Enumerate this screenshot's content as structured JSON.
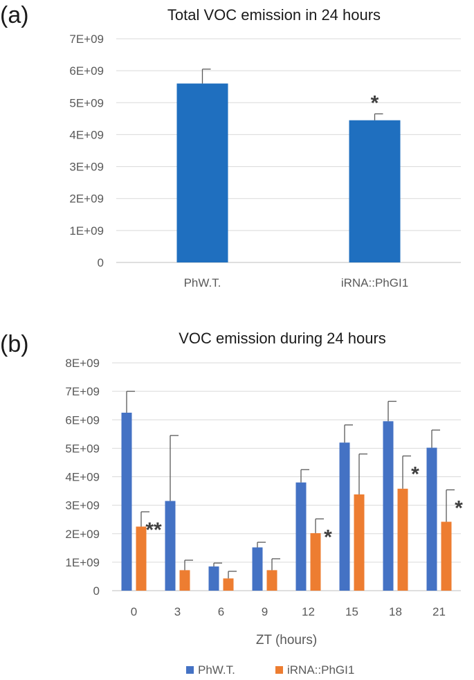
{
  "panel_a": {
    "label": "(a)"
  },
  "panel_b": {
    "label": "(b)"
  },
  "legend": {
    "items": [
      {
        "label": "PhW.T.",
        "color": "#4472C4"
      },
      {
        "label": "iRNA::PhGI1",
        "color": "#ED7D31"
      }
    ]
  },
  "chart_data": [
    {
      "type": "bar",
      "title": "Total VOC emission in 24 hours",
      "categories": [
        "PhW.T.",
        "iRNA::PhGI1"
      ],
      "values": [
        5600000000.0,
        4450000000.0
      ],
      "errors": [
        450000000.0,
        200000000.0
      ],
      "significance": [
        "",
        "*"
      ],
      "ylim": [
        0,
        7000000000.0
      ],
      "yticks": [
        0,
        1000000000.0,
        2000000000.0,
        3000000000.0,
        4000000000.0,
        5000000000.0,
        6000000000.0,
        7000000000.0
      ],
      "ytick_labels": [
        "0",
        "1E+09",
        "2E+09",
        "3E+09",
        "4E+09",
        "5E+09",
        "6E+09",
        "7E+09"
      ],
      "xlabel": "",
      "ylabel": "",
      "color": "#1F6FBF",
      "grid": true
    },
    {
      "type": "bar",
      "title": "VOC emission during 24 hours",
      "categories": [
        "0",
        "3",
        "6",
        "9",
        "12",
        "15",
        "18",
        "21"
      ],
      "series": [
        {
          "name": "PhW.T.",
          "values": [
            6250000000.0,
            3150000000.0,
            850000000.0,
            1520000000.0,
            3800000000.0,
            5200000000.0,
            5950000000.0,
            5020000000.0
          ],
          "errors": [
            750000000.0,
            2300000000.0,
            120000000.0,
            180000000.0,
            450000000.0,
            620000000.0,
            700000000.0,
            620000000.0
          ]
        },
        {
          "name": "iRNA::PhGI1",
          "values": [
            2250000000.0,
            720000000.0,
            430000000.0,
            720000000.0,
            2020000000.0,
            3380000000.0,
            3580000000.0,
            2420000000.0
          ],
          "errors": [
            520000000.0,
            350000000.0,
            250000000.0,
            400000000.0,
            500000000.0,
            1420000000.0,
            1150000000.0,
            1120000000.0
          ]
        }
      ],
      "significance": [
        "**",
        "",
        "",
        "",
        "*",
        "",
        "*",
        "*"
      ],
      "ylim": [
        0,
        8000000000.0
      ],
      "yticks": [
        0,
        1000000000.0,
        2000000000.0,
        3000000000.0,
        4000000000.0,
        5000000000.0,
        6000000000.0,
        7000000000.0,
        8000000000.0
      ],
      "ytick_labels": [
        "0",
        "1E+09",
        "2E+09",
        "3E+09",
        "4E+09",
        "5E+09",
        "6E+09",
        "7E+09",
        "8E+09"
      ],
      "xlabel": "ZT (hours)",
      "ylabel": "",
      "legend_position": "bottom",
      "grid": true
    }
  ]
}
